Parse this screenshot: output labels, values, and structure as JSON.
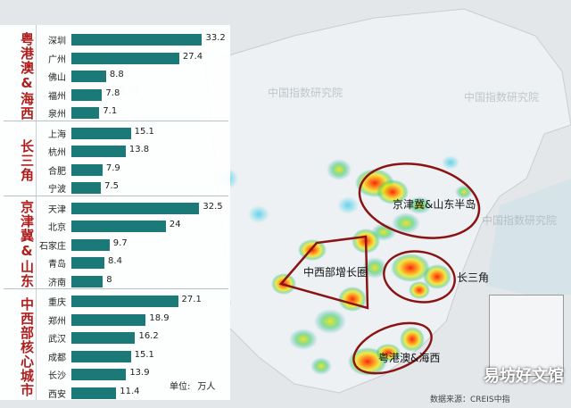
{
  "chart_data": {
    "type": "bar",
    "unit_label": "单位:",
    "unit_value": "万人",
    "groups": [
      {
        "name": "粤港澳&海西",
        "cities": [
          "深圳",
          "广州",
          "佛山",
          "福州",
          "泉州"
        ],
        "values": [
          33.2,
          27.4,
          8.8,
          7.8,
          7.1
        ]
      },
      {
        "name": "长三角",
        "cities": [
          "上海",
          "杭州",
          "合肥",
          "宁波"
        ],
        "values": [
          15.1,
          13.8,
          7.9,
          7.5
        ]
      },
      {
        "name": "京津冀&山东",
        "cities": [
          "天津",
          "北京",
          "石家庄",
          "青岛",
          "济南"
        ],
        "values": [
          32.5,
          24.0,
          9.7,
          8.4,
          8.0
        ]
      },
      {
        "name": "中西部核心城市",
        "cities": [
          "重庆",
          "郑州",
          "武汉",
          "成都",
          "长沙",
          "西安"
        ],
        "values": [
          27.1,
          18.9,
          16.2,
          15.1,
          13.9,
          11.4
        ]
      }
    ],
    "xlim": [
      0,
      34
    ]
  },
  "map": {
    "regions": [
      "京津冀&山东半岛",
      "中西部增长圈",
      "长三角",
      "粤港澳&海西"
    ]
  },
  "watermark": "中国指数研究院",
  "source": "数据来源：CREIS中指",
  "brand": "易坊好文馆"
}
